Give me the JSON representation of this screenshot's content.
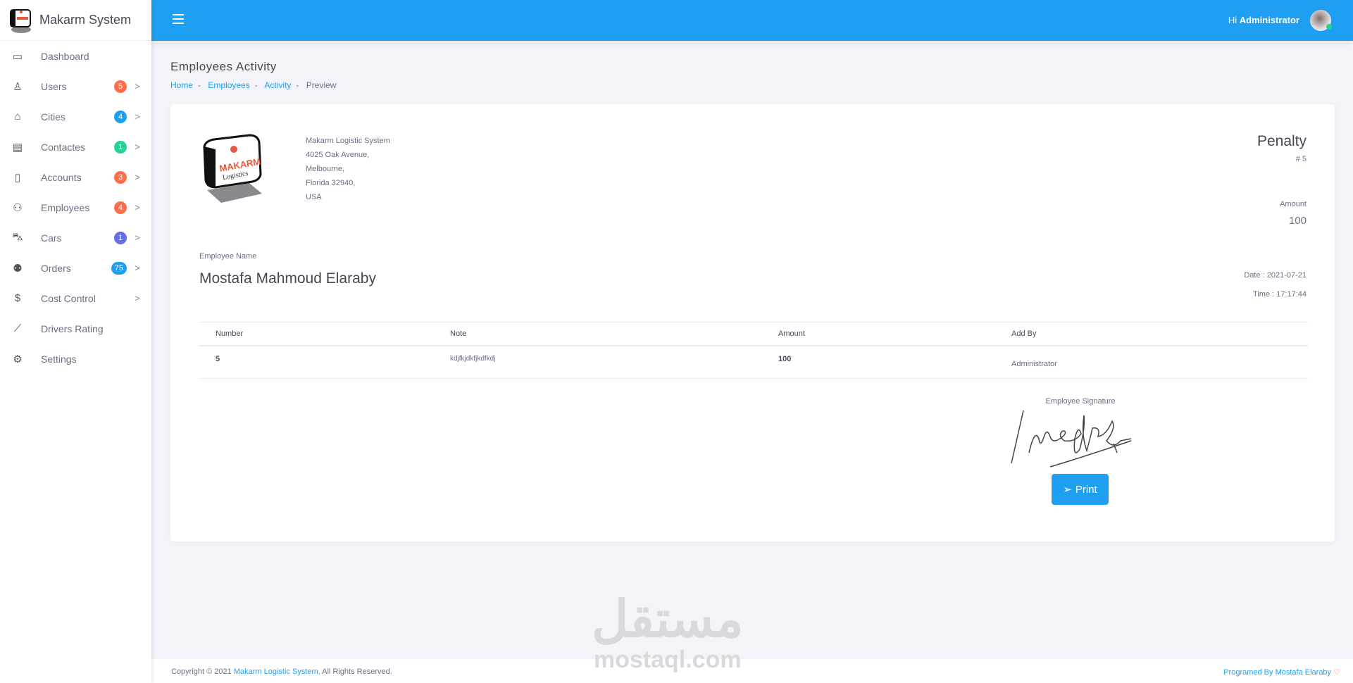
{
  "brand": {
    "name": "Makarm System"
  },
  "sidebar": {
    "items": [
      {
        "label": "Dashboard",
        "icon": "monitor-icon"
      },
      {
        "label": "Users",
        "icon": "users-icon",
        "badge": "5",
        "badge_color": "#ff6d4a"
      },
      {
        "label": "Cities",
        "icon": "home-icon",
        "badge": "4",
        "badge_color": "#1e9ff2"
      },
      {
        "label": "Contactes",
        "icon": "contact-card-icon",
        "badge": "1",
        "badge_color": "#28d094"
      },
      {
        "label": "Accounts",
        "icon": "mobile-icon",
        "badge": "3",
        "badge_color": "#ff6d4a"
      },
      {
        "label": "Employees",
        "icon": "people-icon",
        "badge": "4",
        "badge_color": "#ff6d4a"
      },
      {
        "label": "Cars",
        "icon": "car-icon",
        "badge": "1",
        "badge_color": "#666ee8"
      },
      {
        "label": "Orders",
        "icon": "delivery-icon",
        "badge": "75",
        "badge_color": "#1e9ff2"
      },
      {
        "label": "Cost Control",
        "icon": "dollar-icon"
      },
      {
        "label": "Drivers Rating",
        "icon": "chart-icon"
      },
      {
        "label": "Settings",
        "icon": "gears-icon"
      }
    ]
  },
  "topbar": {
    "greeting": "Hi",
    "user": "Administrator"
  },
  "page": {
    "title": "Employees Activity",
    "breadcrumb": [
      "Home",
      "Employees",
      "Activity",
      "Preview"
    ]
  },
  "invoice": {
    "company_lines": [
      "Makarm Logistic System",
      "4025 Oak Avenue,",
      "Melbourne,",
      "Florida 32940,",
      "USA"
    ],
    "type": "Penalty",
    "number": "# 5",
    "amount_label": "Amount",
    "amount": "100",
    "employee_label": "Employee Name",
    "employee": "Mostafa Mahmoud Elaraby",
    "date": "Date : 2021-07-21",
    "time": "Time : 17:17:44",
    "columns": [
      "Number",
      "Note",
      "Amount",
      "Add By"
    ],
    "row": {
      "number": "5",
      "note": "kdjfkjdkfjkdfkdj",
      "amount": "100",
      "add_by": "Administrator"
    },
    "signature_label": "Employee Signature",
    "print_label": "Print"
  },
  "footer": {
    "copyright": "Copyright © 2021 ",
    "company": "Makarm Logistic System",
    "rights": ", All Rights Reserved.",
    "programmed": "Programed By Mostafa Elaraby"
  },
  "watermark": {
    "arabic": "مستقل",
    "latin": "mostaql.com"
  },
  "colors": {
    "primary": "#1e9ff2",
    "danger": "#ff6d4a",
    "success": "#28d094",
    "info": "#666ee8"
  }
}
